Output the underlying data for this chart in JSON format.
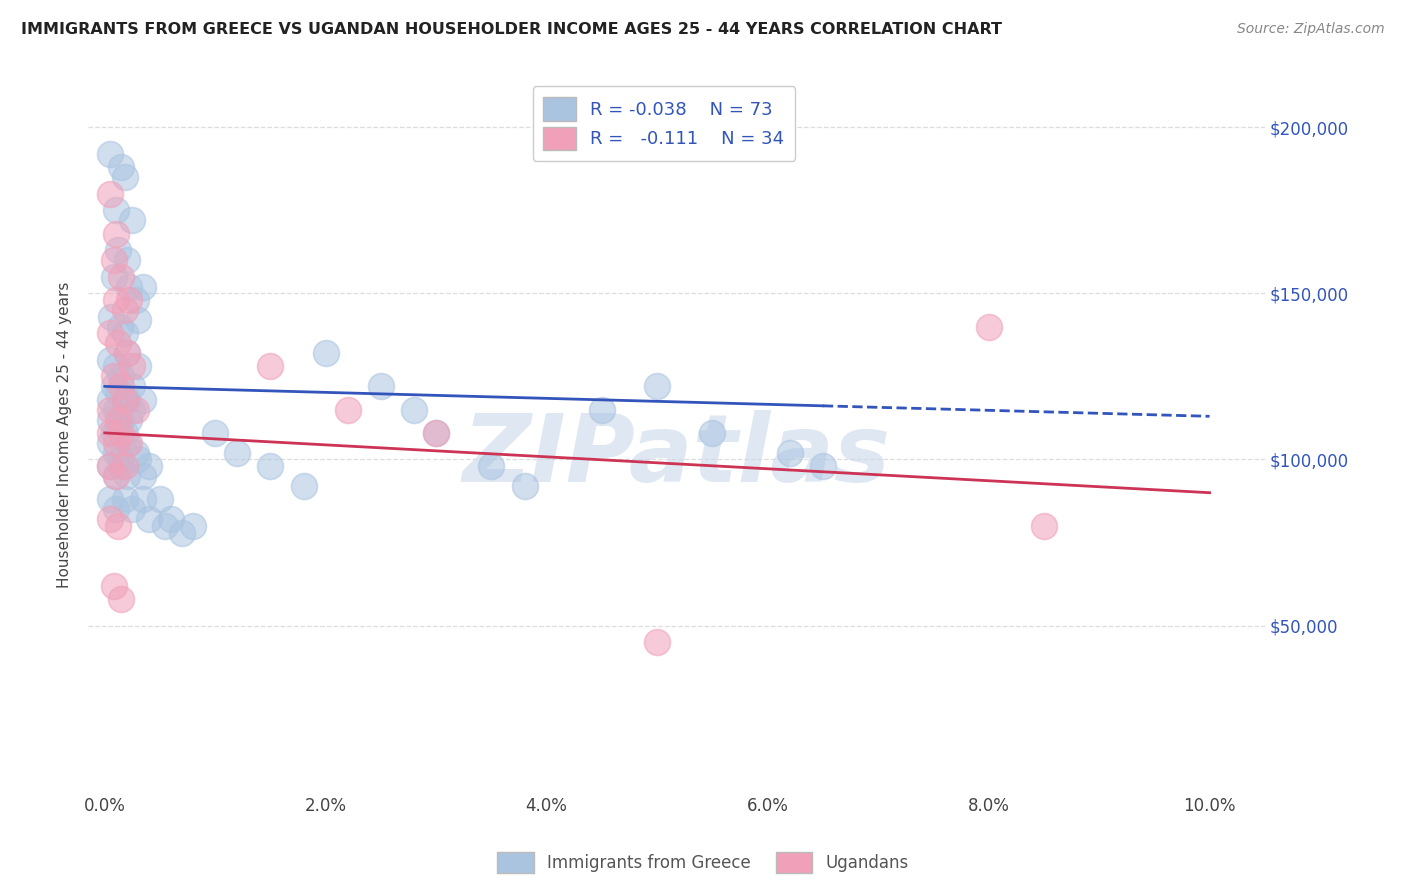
{
  "title": "IMMIGRANTS FROM GREECE VS UGANDAN HOUSEHOLDER INCOME AGES 25 - 44 YEARS CORRELATION CHART",
  "source": "Source: ZipAtlas.com",
  "ylabel": "Householder Income Ages 25 - 44 years",
  "xlabel_ticks": [
    "0.0%",
    "2.0%",
    "4.0%",
    "6.0%",
    "8.0%",
    "10.0%"
  ],
  "xlabel_vals": [
    0.0,
    2.0,
    4.0,
    6.0,
    8.0,
    10.0
  ],
  "ylabel_ticks": [
    "$50,000",
    "$100,000",
    "$150,000",
    "$200,000"
  ],
  "ylabel_vals": [
    50000,
    100000,
    150000,
    200000
  ],
  "ylim": [
    0,
    215000
  ],
  "xlim": [
    -0.15,
    10.5
  ],
  "legend_r_blue": "-0.038",
  "legend_n_blue": "73",
  "legend_r_pink": "-0.111",
  "legend_n_pink": "34",
  "blue_color": "#aac4e0",
  "pink_color": "#f0a0b8",
  "blue_line_color": "#3355bb",
  "pink_line_color": "#cc3355",
  "blue_scatter": [
    [
      0.05,
      192000
    ],
    [
      0.15,
      188000
    ],
    [
      0.18,
      185000
    ],
    [
      0.1,
      175000
    ],
    [
      0.25,
      172000
    ],
    [
      0.12,
      163000
    ],
    [
      0.2,
      160000
    ],
    [
      0.08,
      155000
    ],
    [
      0.22,
      152000
    ],
    [
      0.28,
      148000
    ],
    [
      0.35,
      152000
    ],
    [
      0.06,
      143000
    ],
    [
      0.14,
      140000
    ],
    [
      0.18,
      138000
    ],
    [
      0.3,
      142000
    ],
    [
      0.05,
      130000
    ],
    [
      0.1,
      128000
    ],
    [
      0.15,
      125000
    ],
    [
      0.2,
      132000
    ],
    [
      0.3,
      128000
    ],
    [
      0.08,
      122000
    ],
    [
      0.12,
      120000
    ],
    [
      0.18,
      118000
    ],
    [
      0.25,
      122000
    ],
    [
      0.35,
      118000
    ],
    [
      0.05,
      118000
    ],
    [
      0.1,
      115000
    ],
    [
      0.15,
      112000
    ],
    [
      0.2,
      118000
    ],
    [
      0.25,
      115000
    ],
    [
      0.05,
      112000
    ],
    [
      0.08,
      108000
    ],
    [
      0.12,
      110000
    ],
    [
      0.18,
      108000
    ],
    [
      0.22,
      112000
    ],
    [
      0.05,
      105000
    ],
    [
      0.1,
      102000
    ],
    [
      0.15,
      100000
    ],
    [
      0.2,
      105000
    ],
    [
      0.28,
      102000
    ],
    [
      0.05,
      98000
    ],
    [
      0.1,
      95000
    ],
    [
      0.15,
      98000
    ],
    [
      0.2,
      95000
    ],
    [
      0.3,
      100000
    ],
    [
      0.35,
      95000
    ],
    [
      0.4,
      98000
    ],
    [
      0.05,
      88000
    ],
    [
      0.1,
      85000
    ],
    [
      0.18,
      88000
    ],
    [
      0.25,
      85000
    ],
    [
      0.35,
      88000
    ],
    [
      0.4,
      82000
    ],
    [
      0.5,
      88000
    ],
    [
      0.55,
      80000
    ],
    [
      0.6,
      82000
    ],
    [
      0.7,
      78000
    ],
    [
      0.8,
      80000
    ],
    [
      1.0,
      108000
    ],
    [
      1.2,
      102000
    ],
    [
      1.5,
      98000
    ],
    [
      1.8,
      92000
    ],
    [
      2.0,
      132000
    ],
    [
      2.5,
      122000
    ],
    [
      2.8,
      115000
    ],
    [
      3.0,
      108000
    ],
    [
      3.5,
      98000
    ],
    [
      3.8,
      92000
    ],
    [
      4.5,
      115000
    ],
    [
      5.0,
      122000
    ],
    [
      5.5,
      108000
    ],
    [
      6.2,
      102000
    ],
    [
      6.5,
      98000
    ]
  ],
  "pink_scatter": [
    [
      0.05,
      180000
    ],
    [
      0.1,
      168000
    ],
    [
      0.08,
      160000
    ],
    [
      0.15,
      155000
    ],
    [
      0.1,
      148000
    ],
    [
      0.18,
      145000
    ],
    [
      0.22,
      148000
    ],
    [
      0.05,
      138000
    ],
    [
      0.12,
      135000
    ],
    [
      0.2,
      132000
    ],
    [
      0.08,
      125000
    ],
    [
      0.15,
      122000
    ],
    [
      0.25,
      128000
    ],
    [
      0.05,
      115000
    ],
    [
      0.12,
      112000
    ],
    [
      0.18,
      118000
    ],
    [
      0.28,
      115000
    ],
    [
      0.05,
      108000
    ],
    [
      0.1,
      105000
    ],
    [
      0.15,
      108000
    ],
    [
      0.22,
      105000
    ],
    [
      0.05,
      98000
    ],
    [
      0.1,
      95000
    ],
    [
      0.18,
      98000
    ],
    [
      0.05,
      82000
    ],
    [
      0.12,
      80000
    ],
    [
      0.08,
      62000
    ],
    [
      0.15,
      58000
    ],
    [
      1.5,
      128000
    ],
    [
      2.2,
      115000
    ],
    [
      3.0,
      108000
    ],
    [
      8.0,
      140000
    ],
    [
      8.5,
      80000
    ],
    [
      5.0,
      45000
    ]
  ],
  "blue_line_x0": 0.0,
  "blue_line_y0": 122000,
  "blue_line_x1": 10.0,
  "blue_line_y1": 113000,
  "blue_solid_end": 6.5,
  "pink_line_x0": 0.0,
  "pink_line_y0": 108000,
  "pink_line_x1": 10.0,
  "pink_line_y1": 90000,
  "watermark": "ZIPatlas",
  "watermark_color": "#c8d8ea",
  "background_color": "#ffffff",
  "grid_color": "#dddddd"
}
